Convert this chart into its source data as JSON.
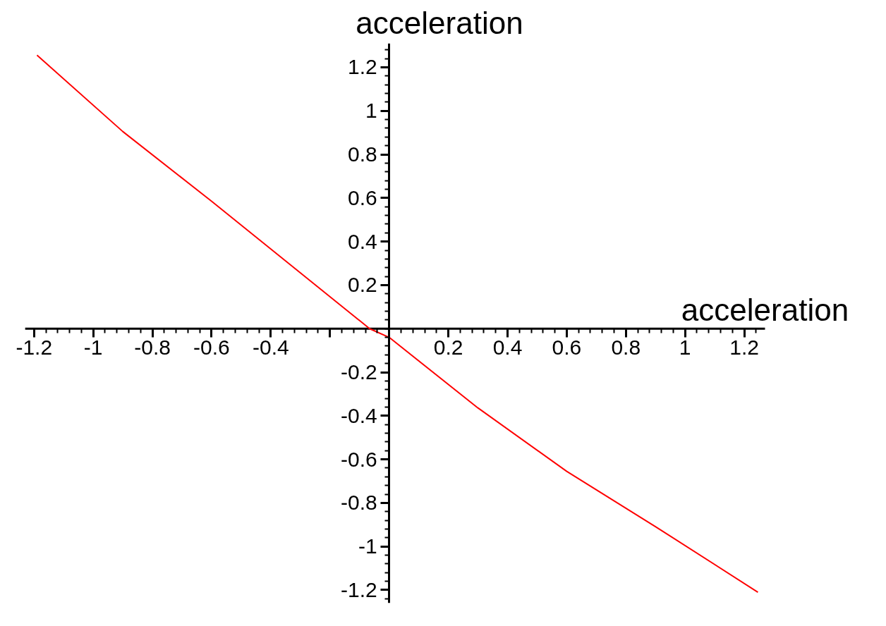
{
  "chart_data": {
    "type": "line",
    "xlabel": "acceleration",
    "ylabel": "acceleration",
    "x": [
      -1.19,
      -0.9,
      -0.6,
      -0.066,
      0,
      0.3,
      0.6,
      0.9,
      1.246
    ],
    "series": [
      {
        "color": "#ff0000",
        "values": [
          1.256,
          0.905,
          0.585,
          0,
          -0.04,
          -0.364,
          -0.655,
          -0.909,
          -1.21
        ]
      }
    ],
    "xlim": [
      -1.23,
      1.27
    ],
    "ylim": [
      -1.26,
      1.31
    ],
    "xticks": [
      -1.2,
      -1,
      -0.8,
      -0.6,
      -0.4,
      {
        "value": -0.2,
        "label": null
      },
      0.2,
      0.4,
      0.6,
      0.8,
      1,
      1.2
    ],
    "yticks": [
      -1.2,
      -1,
      -0.8,
      -0.6,
      -0.4,
      -0.2,
      0.2,
      0.4,
      0.6,
      0.8,
      1,
      1.2
    ],
    "grid": false,
    "marker": "none",
    "line_style": "solid"
  }
}
